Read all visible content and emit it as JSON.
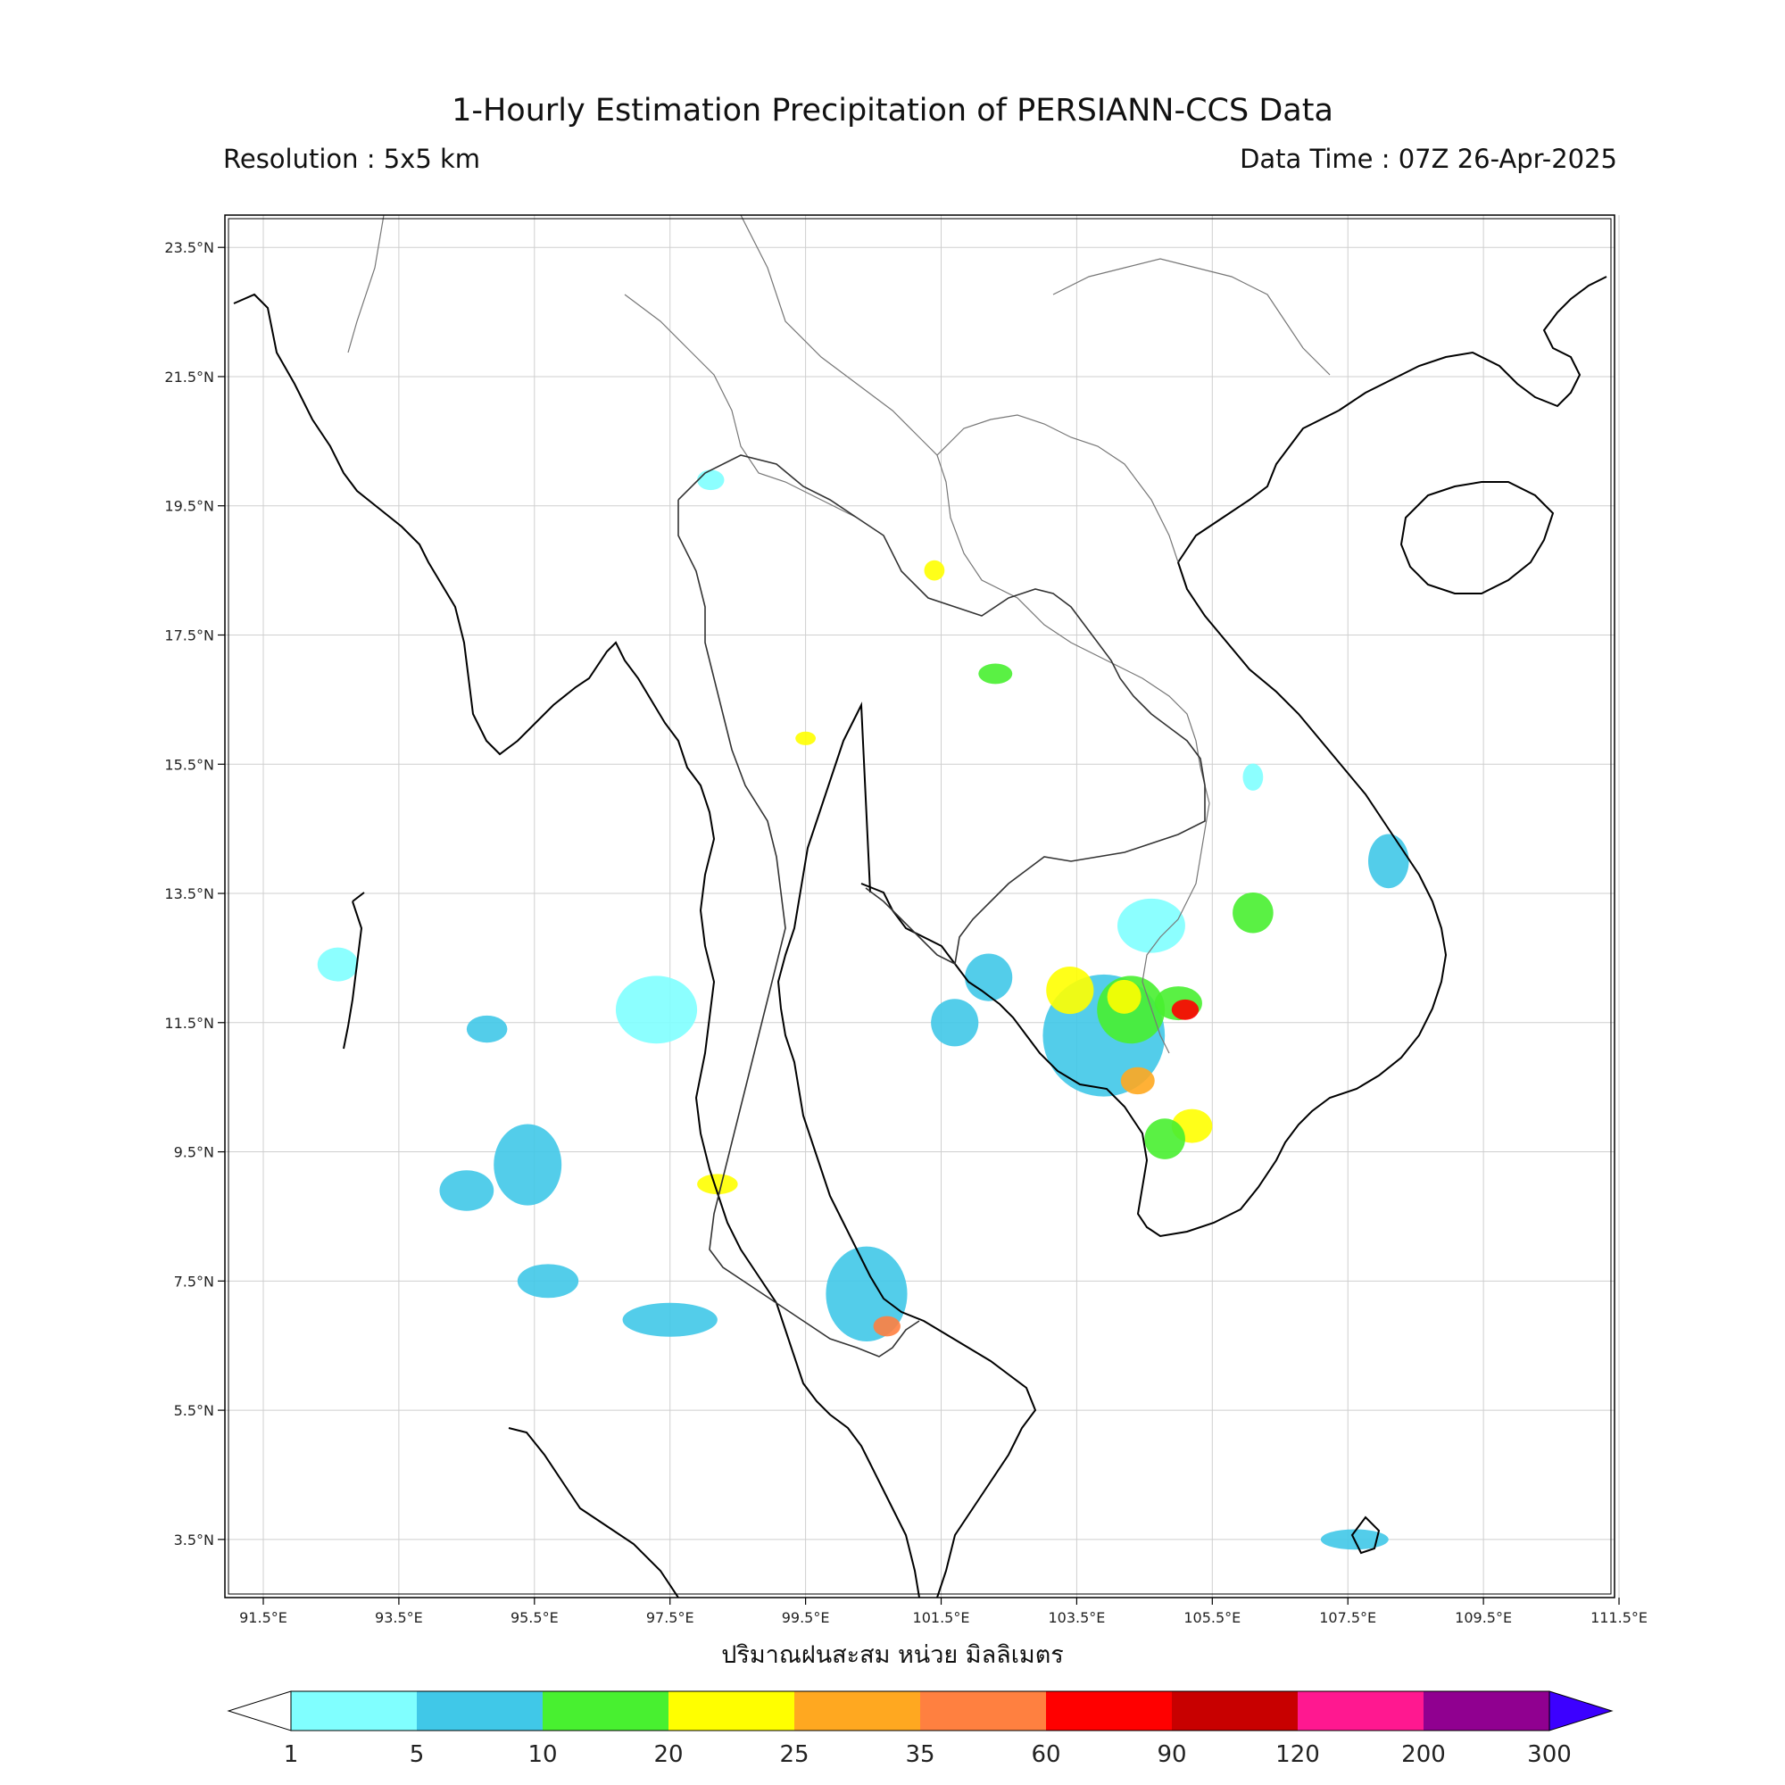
{
  "header": {
    "title": "1-Hourly Estimation Precipitation of PERSIANN-CCS Data",
    "resolution": "Resolution : 5x5 km",
    "data_time": "Data Time : 07Z 26-Apr-2025"
  },
  "map": {
    "lon_range": [
      91.5,
      112.0
    ],
    "lat_range": [
      2.6,
      24.0
    ],
    "lon_ticks": [
      "91.5°E",
      "93.5°E",
      "95.5°E",
      "97.5°E",
      "99.5°E",
      "101.5°E",
      "103.5°E",
      "105.5°E",
      "107.5°E",
      "109.5°E",
      "111.5°E"
    ],
    "lat_ticks": [
      "23.5°N",
      "21.5°N",
      "19.5°N",
      "17.5°N",
      "15.5°N",
      "13.5°N",
      "11.5°N",
      "9.5°N",
      "7.5°N",
      "5.5°N",
      "3.5°N"
    ],
    "grid": true,
    "unit_label": "ปริมาณฝนสะสม หน่วย มิลลิเมตร"
  },
  "colorbar": {
    "labels": [
      "1",
      "5",
      "10",
      "20",
      "25",
      "35",
      "60",
      "90",
      "120",
      "200",
      "300"
    ],
    "colors": [
      "#80ffff",
      "#40c8e8",
      "#48f030",
      "#ffff00",
      "#ffa820",
      "#ff8040",
      "#ff0000",
      "#c80000",
      "#ff1890",
      "#900090",
      "#3c00ff"
    ],
    "extend": "both"
  },
  "chart_data": {
    "type": "heatmap",
    "title": "1-Hourly Estimation Precipitation of PERSIANN-CCS Data",
    "units": "mm",
    "rain_cells": [
      {
        "lon": 103.9,
        "lat": 11.3,
        "rx": 0.9,
        "ry": 0.9,
        "level": 5
      },
      {
        "lon": 104.3,
        "lat": 11.7,
        "rx": 0.5,
        "ry": 0.5,
        "level": 10
      },
      {
        "lon": 103.4,
        "lat": 12.0,
        "rx": 0.35,
        "ry": 0.35,
        "level": 20
      },
      {
        "lon": 104.2,
        "lat": 11.9,
        "rx": 0.25,
        "ry": 0.25,
        "level": 20
      },
      {
        "lon": 104.4,
        "lat": 10.6,
        "rx": 0.25,
        "ry": 0.2,
        "level": 25
      },
      {
        "lon": 105.0,
        "lat": 11.8,
        "rx": 0.35,
        "ry": 0.25,
        "level": 10
      },
      {
        "lon": 105.1,
        "lat": 11.7,
        "rx": 0.2,
        "ry": 0.15,
        "level": 60
      },
      {
        "lon": 104.6,
        "lat": 13.0,
        "rx": 0.5,
        "ry": 0.4,
        "level": 1
      },
      {
        "lon": 105.2,
        "lat": 9.9,
        "rx": 0.3,
        "ry": 0.25,
        "level": 20
      },
      {
        "lon": 104.8,
        "lat": 9.7,
        "rx": 0.3,
        "ry": 0.3,
        "level": 10
      },
      {
        "lon": 106.1,
        "lat": 13.2,
        "rx": 0.3,
        "ry": 0.3,
        "level": 10
      },
      {
        "lon": 102.2,
        "lat": 12.2,
        "rx": 0.35,
        "ry": 0.35,
        "level": 5
      },
      {
        "lon": 101.7,
        "lat": 11.5,
        "rx": 0.35,
        "ry": 0.35,
        "level": 5
      },
      {
        "lon": 97.3,
        "lat": 11.7,
        "rx": 0.6,
        "ry": 0.5,
        "level": 1
      },
      {
        "lon": 95.4,
        "lat": 9.3,
        "rx": 0.5,
        "ry": 0.6,
        "level": 5
      },
      {
        "lon": 94.5,
        "lat": 8.9,
        "rx": 0.4,
        "ry": 0.3,
        "level": 5
      },
      {
        "lon": 95.7,
        "lat": 7.5,
        "rx": 0.45,
        "ry": 0.25,
        "level": 5
      },
      {
        "lon": 97.5,
        "lat": 6.9,
        "rx": 0.7,
        "ry": 0.25,
        "level": 5
      },
      {
        "lon": 94.8,
        "lat": 11.4,
        "rx": 0.3,
        "ry": 0.2,
        "level": 5
      },
      {
        "lon": 98.2,
        "lat": 9.0,
        "rx": 0.3,
        "ry": 0.15,
        "level": 20
      },
      {
        "lon": 100.4,
        "lat": 7.3,
        "rx": 0.6,
        "ry": 0.7,
        "level": 5
      },
      {
        "lon": 100.7,
        "lat": 6.8,
        "rx": 0.2,
        "ry": 0.15,
        "level": 35
      },
      {
        "lon": 108.1,
        "lat": 14.0,
        "rx": 0.3,
        "ry": 0.4,
        "level": 5
      },
      {
        "lon": 107.6,
        "lat": 3.5,
        "rx": 0.5,
        "ry": 0.15,
        "level": 5
      },
      {
        "lon": 92.6,
        "lat": 12.4,
        "rx": 0.3,
        "ry": 0.25,
        "level": 1
      },
      {
        "lon": 98.1,
        "lat": 19.9,
        "rx": 0.2,
        "ry": 0.15,
        "level": 1
      },
      {
        "lon": 102.3,
        "lat": 16.9,
        "rx": 0.25,
        "ry": 0.15,
        "level": 10
      },
      {
        "lon": 101.4,
        "lat": 18.5,
        "rx": 0.15,
        "ry": 0.15,
        "level": 20
      },
      {
        "lon": 99.5,
        "lat": 15.9,
        "rx": 0.15,
        "ry": 0.1,
        "level": 20
      },
      {
        "lon": 106.1,
        "lat": 15.3,
        "rx": 0.15,
        "ry": 0.2,
        "level": 1
      }
    ]
  }
}
